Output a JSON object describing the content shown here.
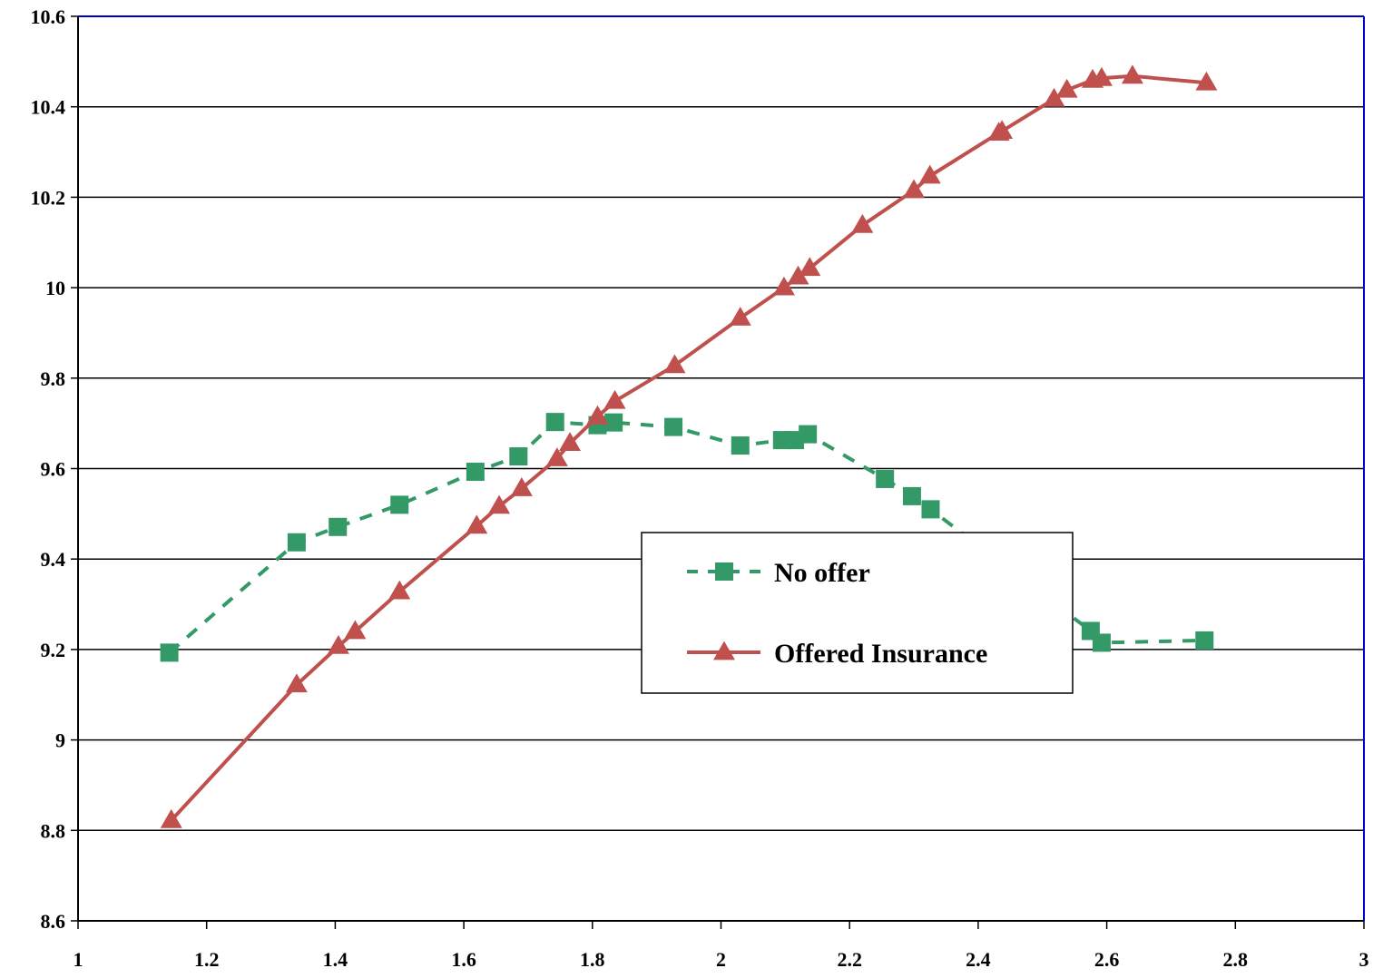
{
  "chart_data": {
    "type": "line",
    "title": "",
    "xlabel": "",
    "ylabel": "",
    "xlim": [
      1,
      3
    ],
    "ylim": [
      8.6,
      10.6
    ],
    "x_ticks": [
      "1",
      "1.2",
      "1.4",
      "1.6",
      "1.8",
      "2",
      "2.2",
      "2.4",
      "2.6",
      "2.8",
      "3"
    ],
    "y_ticks": [
      "8.6",
      "8.8",
      "9",
      "9.2",
      "9.4",
      "9.6",
      "9.8",
      "10",
      "10.2",
      "10.4",
      "10.6"
    ],
    "grid": "horizontal",
    "legend_placement": "center",
    "series": [
      {
        "name": "No offer",
        "marker": "square",
        "line_style": "dashed",
        "color": "#339966",
        "points": [
          [
            1.142,
            9.193
          ],
          [
            1.34,
            9.437
          ],
          [
            1.404,
            9.471
          ],
          [
            1.5,
            9.52
          ],
          [
            1.618,
            9.593
          ],
          [
            1.685,
            9.627
          ],
          [
            1.742,
            9.703
          ],
          [
            1.808,
            9.696
          ],
          [
            1.833,
            9.702
          ],
          [
            1.926,
            9.692
          ],
          [
            2.03,
            9.651
          ],
          [
            2.095,
            9.663
          ],
          [
            2.115,
            9.663
          ],
          [
            2.135,
            9.676
          ],
          [
            2.255,
            9.577
          ],
          [
            2.297,
            9.539
          ],
          [
            2.326,
            9.51
          ],
          [
            2.575,
            9.241
          ],
          [
            2.592,
            9.215
          ],
          [
            2.752,
            9.22
          ]
        ]
      },
      {
        "name": "Offered Insurance",
        "marker": "triangle",
        "line_style": "solid",
        "color": "#c0504d",
        "points": [
          [
            1.145,
            8.822
          ],
          [
            1.34,
            9.122
          ],
          [
            1.405,
            9.207
          ],
          [
            1.431,
            9.24
          ],
          [
            1.5,
            9.328
          ],
          [
            1.62,
            9.473
          ],
          [
            1.655,
            9.517
          ],
          [
            1.69,
            9.556
          ],
          [
            1.745,
            9.622
          ],
          [
            1.765,
            9.656
          ],
          [
            1.808,
            9.715
          ],
          [
            1.835,
            9.749
          ],
          [
            1.928,
            9.828
          ],
          [
            2.03,
            9.933
          ],
          [
            2.098,
            10.0
          ],
          [
            2.12,
            10.024
          ],
          [
            2.138,
            10.043
          ],
          [
            2.22,
            10.138
          ],
          [
            2.3,
            10.215
          ],
          [
            2.325,
            10.247
          ],
          [
            2.432,
            10.342
          ],
          [
            2.437,
            10.346
          ],
          [
            2.518,
            10.417
          ],
          [
            2.538,
            10.437
          ],
          [
            2.578,
            10.459
          ],
          [
            2.592,
            10.463
          ],
          [
            2.64,
            10.468
          ],
          [
            2.755,
            10.453
          ]
        ]
      }
    ]
  }
}
